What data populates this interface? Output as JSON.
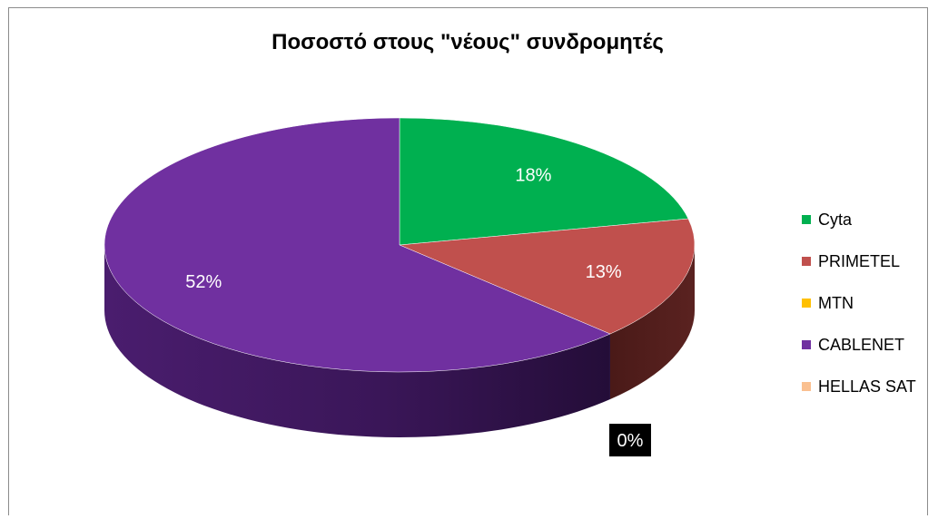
{
  "chart_data": {
    "type": "pie",
    "title": "Ποσοστό στους \"νέους\" συνδρομητές",
    "categories": [
      "Cyta",
      "PRIMETEL",
      "MTN",
      "CABLENET",
      "HELLAS SAT"
    ],
    "values": [
      18,
      13,
      0,
      52,
      0
    ],
    "value_labels": [
      "18%",
      "13%",
      "0%",
      "52%",
      ""
    ],
    "colors": [
      "#00b050",
      "#c0504d",
      "#ffc000",
      "#7030a0",
      "#fac090"
    ],
    "style": "3d",
    "legend_position": "right"
  }
}
